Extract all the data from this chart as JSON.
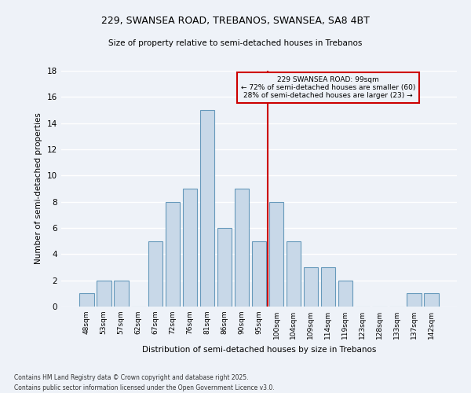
{
  "title1": "229, SWANSEA ROAD, TREBANOS, SWANSEA, SA8 4BT",
  "title2": "Size of property relative to semi-detached houses in Trebanos",
  "xlabel": "Distribution of semi-detached houses by size in Trebanos",
  "ylabel": "Number of semi-detached properties",
  "footnote1": "Contains HM Land Registry data © Crown copyright and database right 2025.",
  "footnote2": "Contains public sector information licensed under the Open Government Licence v3.0.",
  "categories": [
    "48sqm",
    "53sqm",
    "57sqm",
    "62sqm",
    "67sqm",
    "72sqm",
    "76sqm",
    "81sqm",
    "86sqm",
    "90sqm",
    "95sqm",
    "100sqm",
    "104sqm",
    "109sqm",
    "114sqm",
    "119sqm",
    "123sqm",
    "128sqm",
    "133sqm",
    "137sqm",
    "142sqm"
  ],
  "values": [
    1,
    2,
    2,
    0,
    5,
    8,
    9,
    15,
    6,
    9,
    5,
    8,
    5,
    3,
    3,
    2,
    0,
    0,
    0,
    1,
    1
  ],
  "bar_color": "#c8d8e8",
  "bar_edge_color": "#6699bb",
  "property_line_x": 10.5,
  "annotation_title": "229 SWANSEA ROAD: 99sqm",
  "annotation_line2": "← 72% of semi-detached houses are smaller (60)",
  "annotation_line3": "28% of semi-detached houses are larger (23) →",
  "annotation_box_color": "#cc0000",
  "vline_color": "#cc0000",
  "background_color": "#eef2f8",
  "grid_color": "#ffffff",
  "ylim": [
    0,
    18
  ],
  "yticks": [
    0,
    2,
    4,
    6,
    8,
    10,
    12,
    14,
    16,
    18
  ]
}
